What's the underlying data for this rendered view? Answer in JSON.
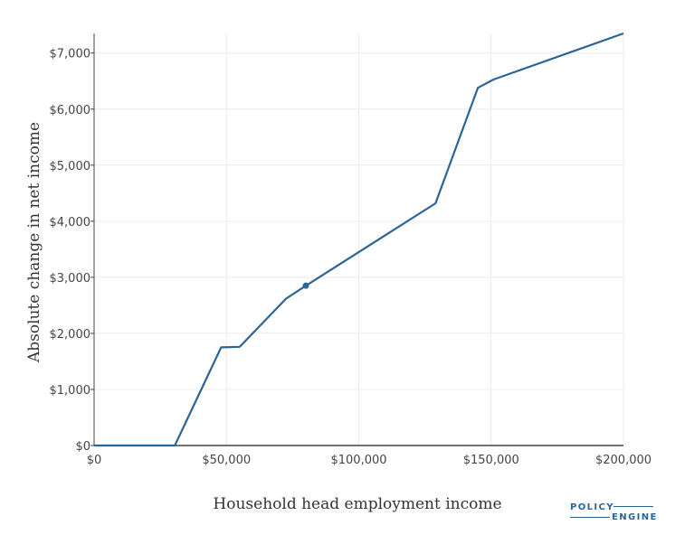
{
  "chart_data": {
    "type": "line",
    "title": "",
    "xlabel": "Household head employment income",
    "ylabel": "Absolute change in net income",
    "xlim": [
      0,
      200000
    ],
    "ylim": [
      0,
      7350
    ],
    "x_ticks": [
      0,
      50000,
      100000,
      150000,
      200000
    ],
    "x_tick_labels": [
      "$0",
      "$50,000",
      "$100,000",
      "$150,000",
      "$200,000"
    ],
    "y_ticks": [
      0,
      1000,
      2000,
      3000,
      4000,
      5000,
      6000,
      7000
    ],
    "y_tick_labels": [
      "$0",
      "$1,000",
      "$2,000",
      "$3,000",
      "$4,000",
      "$5,000",
      "$6,000",
      "$7,000"
    ],
    "grid": true,
    "series": [
      {
        "color": "#2c6496",
        "x": [
          0,
          30500,
          48000,
          55000,
          72500,
          80000,
          129000,
          145000,
          151000,
          200000
        ],
        "y": [
          0,
          0,
          1750,
          1760,
          2620,
          2850,
          4320,
          6380,
          6530,
          7350
        ]
      }
    ],
    "marker": {
      "x": 80000,
      "y": 2850
    }
  },
  "logo": {
    "line1": "POLICY",
    "line2": "ENGINE",
    "color": "#2c6496"
  }
}
